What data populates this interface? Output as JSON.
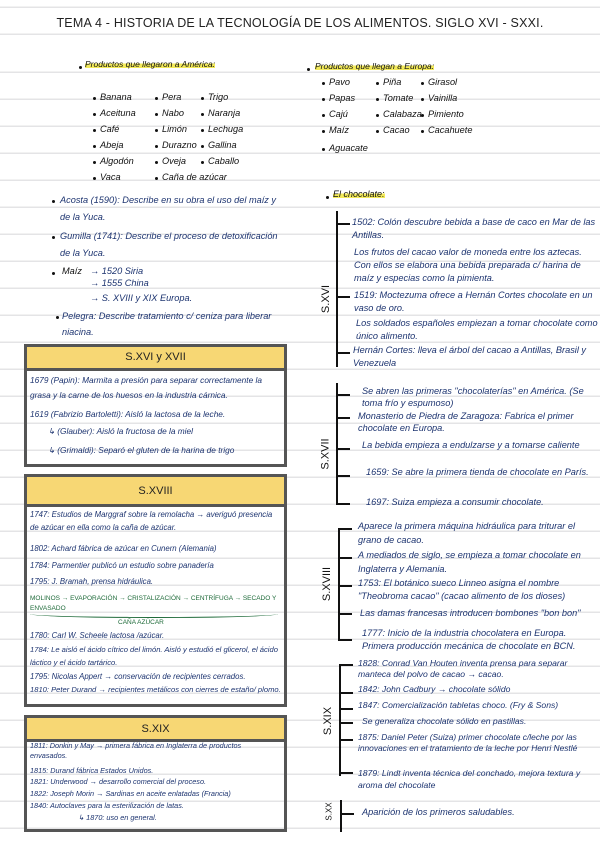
{
  "title": "TEMA 4 - HISTORIA DE LA TECNOLOGÍA DE LOS ALIMENTOS. SIGLO XVI - SXXI.",
  "america": {
    "heading": "Productos que llegaron a América:",
    "items": [
      "Banana",
      "Pera",
      "Trigo",
      "Aceituna",
      "Nabo",
      "Naranja",
      "Café",
      "Limón",
      "Lechuga",
      "Abeja",
      "Durazno",
      "Gallina",
      "Algodón",
      "Oveja",
      "Caballo",
      "Vaca",
      "Caña de azúcar"
    ]
  },
  "europa": {
    "heading": "Productos que llegan a Europa:",
    "items": [
      "Pavo",
      "Piña",
      "Girasol",
      "Papas",
      "Tomate",
      "Vainilla",
      "Cajú",
      "Calabaza",
      "Pimiento",
      "Maíz",
      "Cacao",
      "Cacahuete",
      "Aguacate"
    ]
  },
  "notes": [
    "Acosta (1590): Describe en su obra el uso del maíz y de la Yuca.",
    "Gumilla (1741): Describe el proceso de detoxificación de la Yuca.",
    "Maíz",
    "→ 1520 Siria",
    "→ 1555 China",
    "→ S. XVIII y XIX Europa.",
    "Pelegra: Describe tratamiento c/ ceniza para liberar niacina."
  ],
  "box1": {
    "header": "S.XVI y XVII",
    "lines": [
      "1679 (Papin): Marmita a presión para separar correctamente la grasa y la carne de los huesos en la industria cárnica.",
      "1619 (Fabrizio Bartoletti): Aisló la lactosa de la leche.",
      "↳ (Glauber): Aisló la fructosa de la miel",
      "↳ (Grimaldi): Separó el gluten de la harina de trigo"
    ]
  },
  "box2": {
    "header": "S.XVIII",
    "lines": [
      "1747: Estudios de Marggraf sobre la remolacha → averiguó presencia de azúcar en ella como la caña de azúcar.",
      "1802: Achard fábrica de azúcar en Cunern (Alemania)",
      "1784: Parmentier publicó un estudio sobre panadería",
      "1795: J. Bramah, prensa hidráulica.",
      "MOLINOS → EVAPORACIÓN → CRISTALIZACIÓN → CENTRÍFUGA → SECADO Y ENVASADO",
      "CAÑA AZÚCAR",
      "1780: Carl W. Scheele lactosa /azúcar.",
      "1784: Le aisló el ácido cítrico del limón. Aisló y estudió el glicerol, el ácido láctico y el ácido tartárico.",
      "1795: Nicolas Appert → conservación de recipientes cerrados.",
      "1810: Peter Durand → recipientes metálicos con cierres de estaño/ plomo."
    ]
  },
  "box3": {
    "header": "S.XIX",
    "lines": [
      "1811: Donkin y May → primera fábrica en Inglaterra de productos envasados.",
      "1815: Durand fábrica Estados Unidos.",
      "1821: Underwood → desarrollo comercial del proceso.",
      "1822: Joseph Morin → Sardinas en aceite enlatadas (Francia)",
      "1840: Autoclaves para la esterilización de latas.",
      "↳ 1870: uso en general."
    ]
  },
  "chocolate": {
    "heading": "El chocolate:",
    "xvi": {
      "label": "S.XVI",
      "lines": [
        "1502: Colón descubre bebida a base de caco en Mar de las Antillas.",
        "Los frutos del cacao valor de moneda entre los aztecas. Con ellos se elabora una bebida preparada c/ harina de maíz y especias como la pimienta.",
        "1519: Moctezuma ofrece a Hernán Cortes chocolate en un vaso de oro.",
        "Los soldados españoles empiezan a tomar chocolate como único alimento.",
        "Hernán Cortes: lleva el árbol del cacao a Antillas, Brasil y Venezuela"
      ]
    },
    "xvii": {
      "label": "S.XVII",
      "lines": [
        "Se abren las primeras \"chocolaterías\" en América. (Se toma frío y espumoso)",
        "Monasterio de Piedra de Zaragoza: Fabrica el primer chocolate en Europa.",
        "La bebida empieza a endulzarse y a tomarse caliente",
        "1659: Se abre la primera tienda de chocolate en París.",
        "1697: Suiza empieza a consumir chocolate."
      ]
    },
    "xviii": {
      "label": "S.XVIII",
      "lines": [
        "Aparece la primera máquina hidráulica para triturar el grano de cacao.",
        "A mediados de siglo, se empieza a tomar chocolate en Inglaterra y Alemania.",
        "1753: El botánico sueco Linneo asigna el nombre \"Theobroma cacao\" (cacao alimento de los dioses)",
        "Las damas francesas introducen bombones \"bon bon\"",
        "1777: Inicio de la industria chocolatera en Europa. Primera producción mecánica de chocolate en BCN."
      ]
    },
    "xix": {
      "label": "S.XIX",
      "lines": [
        "1828: Conrad Van Houten inventa prensa para separar manteca del polvo de cacao → cacao.",
        "1842: John Cadbury → chocolate sólido",
        "1847: Comercialización tabletas choco. (Fry & Sons)",
        "Se generaliza chocolate sólido en pastillas.",
        "1875: Daniel Peter (Suiza) primer chocolate c/leche por las innovaciones en el tratamiento de la leche por Henri Nestlé",
        "1879: Lindt inventa técnica del conchado, mejora textura y aroma del chocolate"
      ]
    },
    "xx": {
      "label": "S.XX",
      "lines": [
        "Aparición de los primeros saludables."
      ]
    }
  },
  "colors": {
    "ink": "#1d3470",
    "highlight": "#f3ea5a",
    "box_header": "#f7d774"
  }
}
